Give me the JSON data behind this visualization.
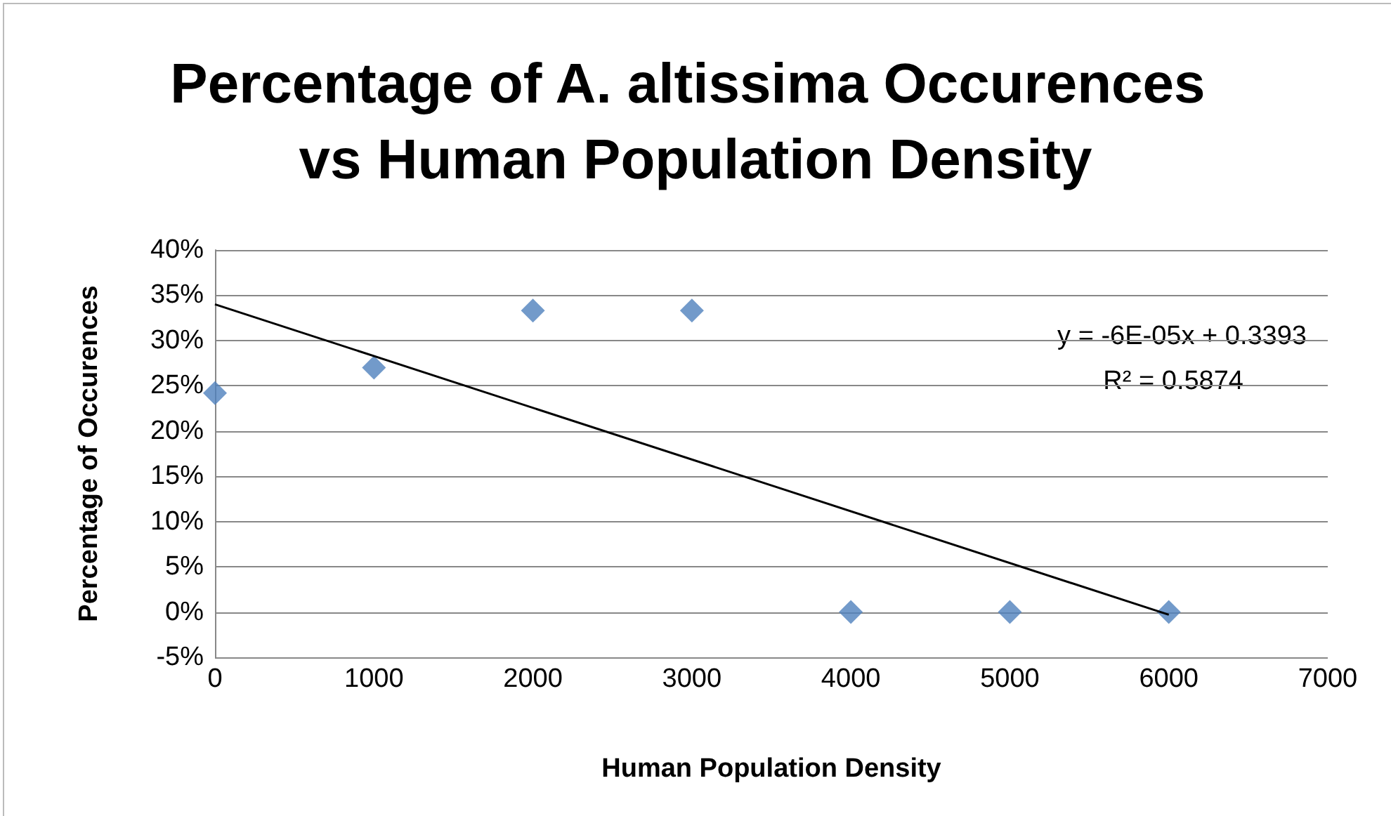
{
  "chart_data": {
    "type": "scatter",
    "title": "Percentage of A. altissima Occurences vs Human Population Density",
    "xlabel": "Human Population Density",
    "ylabel": "Percentage of Occurences",
    "series": [
      {
        "marker": "diamond",
        "color": "#4f81bd",
        "x": [
          0,
          1000,
          2000,
          3000,
          4000,
          5000,
          6000
        ],
        "values": [
          0.242,
          0.27,
          0.333,
          0.333,
          0,
          0,
          0
        ]
      },
      {
        "type": "line",
        "marker": "none",
        "color": "#000000",
        "x": [
          0,
          6000
        ],
        "values": [
          0.34,
          -0.003
        ]
      }
    ],
    "xlim": [
      0,
      7000
    ],
    "xticks": [
      0,
      1000,
      2000,
      3000,
      4000,
      5000,
      6000,
      7000
    ],
    "ylim": [
      -0.05,
      0.4
    ],
    "yticks": [
      {
        "value": -0.05,
        "label": "-5%"
      },
      {
        "value": 0,
        "label": "0%"
      },
      {
        "value": 0.05,
        "label": "5%"
      },
      {
        "value": 0.1,
        "label": "10%"
      },
      {
        "value": 0.15,
        "label": "15%"
      },
      {
        "value": 0.2,
        "label": "20%"
      },
      {
        "value": 0.25,
        "label": "25%"
      },
      {
        "value": 0.3,
        "label": "30%"
      },
      {
        "value": 0.35,
        "label": "35%"
      },
      {
        "value": 0.4,
        "label": "40%"
      }
    ],
    "annotations": [
      "y = -6E-05x + 0.3393",
      "R² = 0.5874"
    ],
    "grid": "y"
  }
}
